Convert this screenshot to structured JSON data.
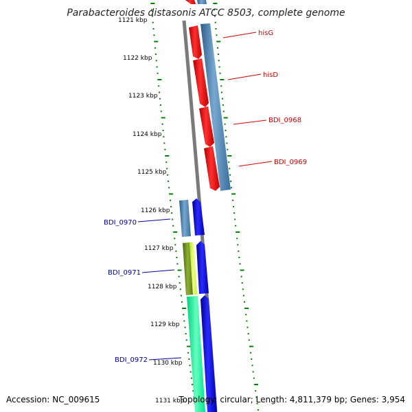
{
  "title": "Parabacteroides distasonis ATCC 8503, complete genome",
  "footer": {
    "accession": "Accession: NC_009615",
    "summary": "Topology: circular; Length: 4,811,379 bp; Genes: 3,954"
  },
  "kbp_labels": [
    "1121 kbp",
    "1122 kbp",
    "1123 kbp",
    "1124 kbp",
    "1125 kbp",
    "1126 kbp",
    "1127 kbp",
    "1128 kbp",
    "1129 kbp",
    "1130 kbp",
    "1131 kbp"
  ],
  "gene_labels": {
    "right": [
      "hisG",
      "hisD",
      "BDI_0968",
      "BDI_0969"
    ],
    "left": [
      "BDI_0970",
      "BDI_0971",
      "BDI_0972"
    ]
  },
  "colors": {
    "backbone": "#808080",
    "ticks": "#008000",
    "red_gene": "#ff0000",
    "blue_gene": "#0000ff",
    "steel_gene": "#4682b4",
    "olive_gene": "#6b8e23",
    "yellow_gene": "#ccff33",
    "spring_gene": "#00ff99",
    "right_label": "#cc0000",
    "left_label": "#000099"
  }
}
